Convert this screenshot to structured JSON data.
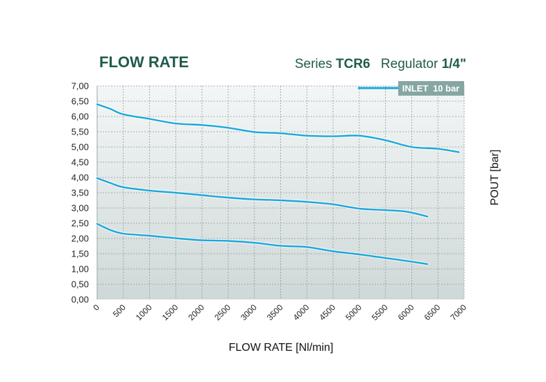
{
  "header": {
    "title": "FLOW RATE",
    "series_prefix": "Series",
    "series_model": "TCR6",
    "regulator_label": "Regulator",
    "regulator_size": "1/4\""
  },
  "colors": {
    "line": "#1aa7dc",
    "title": "#1f5b4c",
    "legend_bg": "#86a6a3",
    "plot_bg_top": "#f3f6f6",
    "plot_bg_bottom": "#cfd8d8",
    "grid": "#8c9a9a"
  },
  "chart_data": {
    "type": "line",
    "xlabel": "FLOW RATE [Nl/min]",
    "ylabel": "POUT [bar]",
    "xlim": [
      0,
      7000
    ],
    "ylim": [
      0,
      7
    ],
    "grid": true,
    "legend_position": "top-right",
    "legend": [
      {
        "label": "INLET",
        "value": "10 bar"
      }
    ],
    "x_ticks": [
      "0",
      "500",
      "1000",
      "1500",
      "2000",
      "2500",
      "3000",
      "3500",
      "4000",
      "4500",
      "5000",
      "5500",
      "6000",
      "6500",
      "7000"
    ],
    "y_ticks": [
      "0,00",
      "0,50",
      "1,00",
      "1,50",
      "2,00",
      "2,50",
      "3,00",
      "3,50",
      "4,00",
      "4,50",
      "5,00",
      "5,50",
      "6,00",
      "6,50",
      "7,00"
    ],
    "series": [
      {
        "x": [
          0,
          250,
          500,
          1000,
          1500,
          2000,
          2500,
          3000,
          3500,
          4000,
          4500,
          5000,
          5500,
          6000,
          6500,
          6900
        ],
        "y": [
          6.4,
          6.25,
          6.07,
          5.92,
          5.77,
          5.72,
          5.63,
          5.49,
          5.45,
          5.37,
          5.35,
          5.37,
          5.22,
          5.0,
          4.94,
          4.83
        ]
      },
      {
        "x": [
          0,
          250,
          500,
          1000,
          1500,
          2000,
          2500,
          3000,
          3500,
          4000,
          4500,
          5000,
          5500,
          5900,
          6300
        ],
        "y": [
          3.98,
          3.82,
          3.68,
          3.57,
          3.5,
          3.42,
          3.34,
          3.28,
          3.25,
          3.2,
          3.12,
          2.98,
          2.93,
          2.88,
          2.72
        ]
      },
      {
        "x": [
          0,
          250,
          500,
          1000,
          1500,
          2000,
          2500,
          3000,
          3500,
          4000,
          4500,
          5000,
          5500,
          6000,
          6300
        ],
        "y": [
          2.48,
          2.28,
          2.16,
          2.09,
          2.01,
          1.94,
          1.92,
          1.86,
          1.76,
          1.72,
          1.58,
          1.48,
          1.36,
          1.24,
          1.16
        ]
      }
    ]
  }
}
